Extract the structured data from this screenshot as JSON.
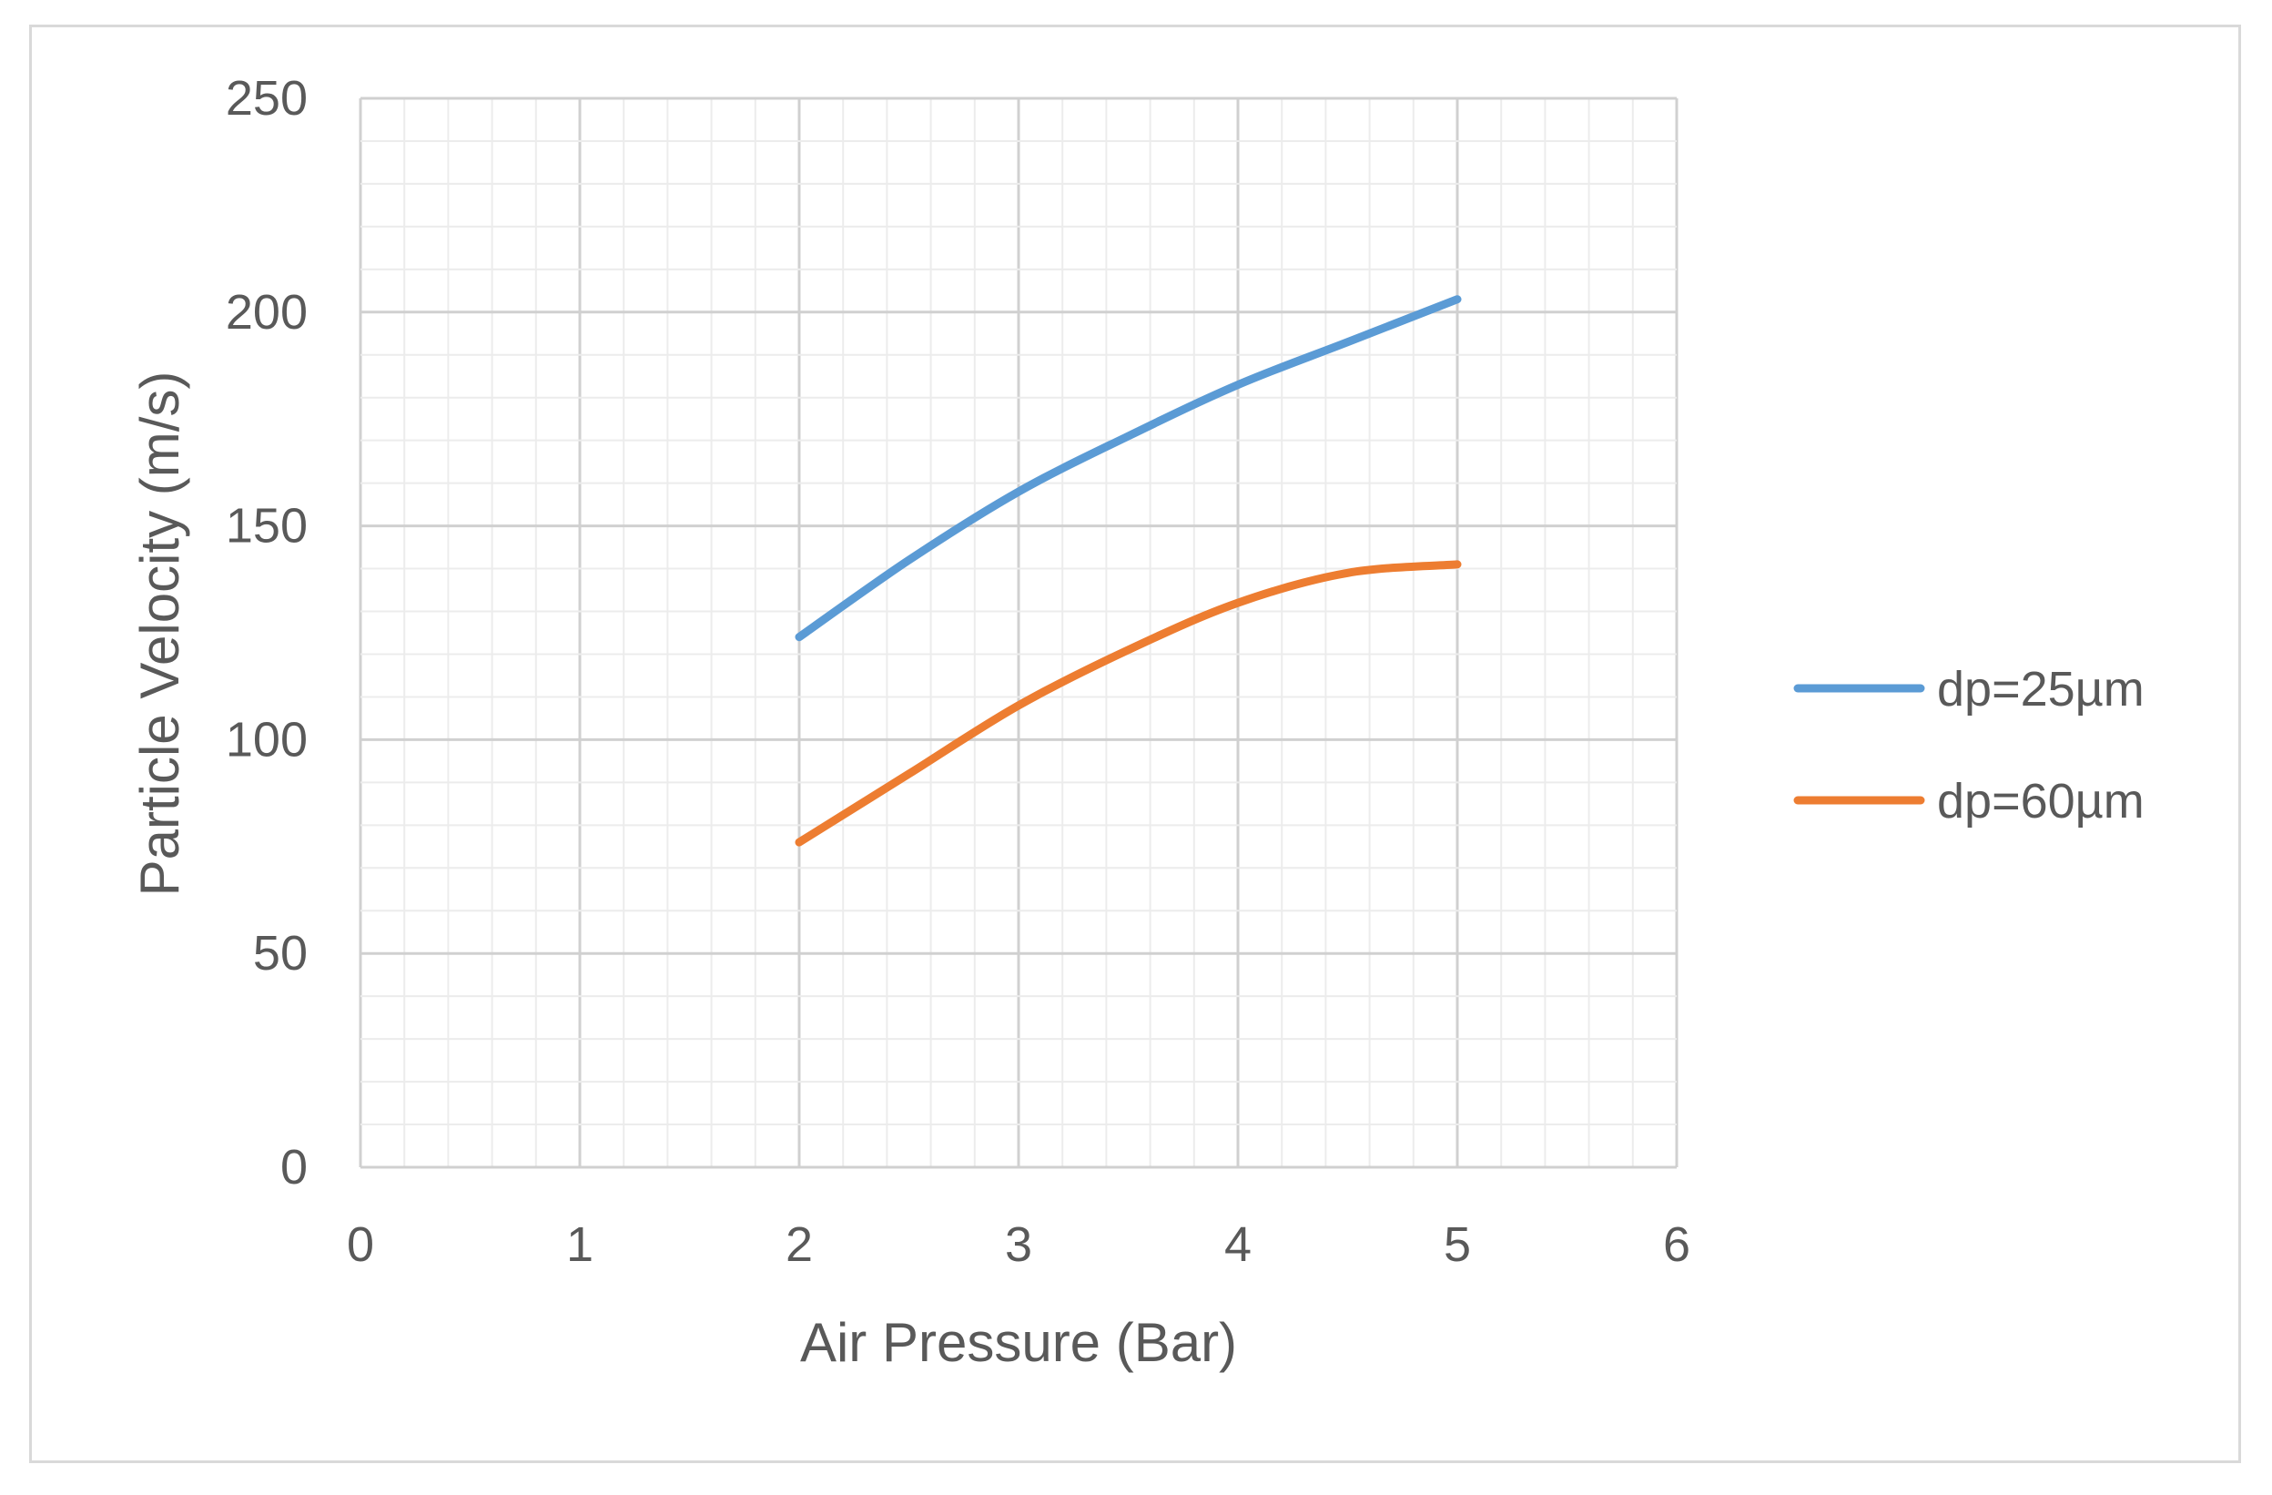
{
  "chart_data": {
    "type": "line",
    "title": "",
    "xlabel": "Air Pressure (Bar)",
    "ylabel": "Particle Velocity (m/s)",
    "xlim": [
      0,
      6
    ],
    "ylim": [
      0,
      250
    ],
    "xticks": [
      0,
      1,
      2,
      3,
      4,
      5,
      6
    ],
    "yticks": [
      0,
      50,
      100,
      150,
      200,
      250
    ],
    "grid": true,
    "minor_grid": true,
    "legend_position": "right",
    "x": [
      2,
      2.5,
      3,
      3.5,
      4,
      4.5,
      5
    ],
    "series": [
      {
        "name": "dp=25µm",
        "color": "#5b9bd5",
        "values": [
          124,
          142,
          158,
          171,
          183,
          193,
          203
        ]
      },
      {
        "name": "dp=60µm",
        "color": "#ed7d31",
        "values": [
          76,
          92,
          108,
          121,
          132,
          139,
          141
        ]
      }
    ]
  }
}
